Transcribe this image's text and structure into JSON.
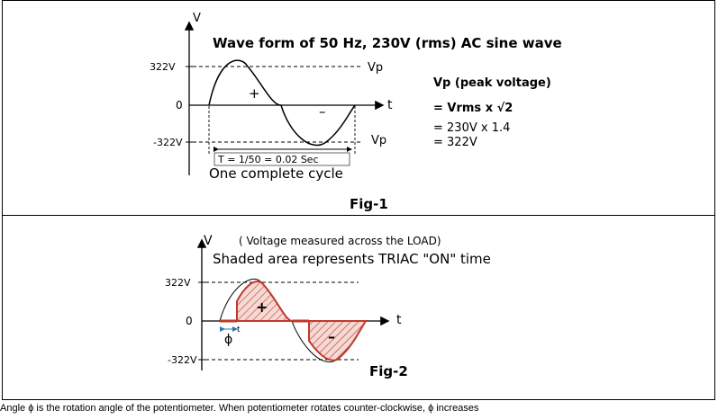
{
  "fig1": {
    "y_axis": "V",
    "title": "Wave form of 50 Hz, 230V (rms) AC sine wave",
    "tick_pos": "322V",
    "tick_zero": "0",
    "tick_neg": "-322V",
    "t_axis": "t",
    "vp_top": "Vp",
    "vp_bottom": "Vp",
    "plus": "+",
    "minus": "–",
    "period": "T = 1/50 = 0.02 Sec",
    "cycle": "One complete cycle",
    "fig_label": "Fig-1",
    "formula_title": "Vp (peak voltage)",
    "formula_line1": "= Vrms x √2",
    "formula_line2": "= 230V x 1.4",
    "formula_line3": "= 322V"
  },
  "fig2": {
    "y_axis": "V",
    "note": "( Voltage measured across the LOAD)",
    "title": "Shaded area represents TRIAC \"ON\" time",
    "tick_pos": "322V",
    "tick_zero": "0",
    "tick_neg": "-322V",
    "t_axis": "t",
    "plus": "+",
    "minus": "–",
    "phi": "ϕ",
    "t_small": "t",
    "fig_label": "Fig-2"
  },
  "caption": "Angle ϕ is the rotation angle of the potentiometer.  When potentiometer rotates counter-clockwise,  ϕ increases",
  "colors": {
    "fill": "#c0392b",
    "hatch": "#b03a2e",
    "arrow": "#2a7ab0"
  }
}
